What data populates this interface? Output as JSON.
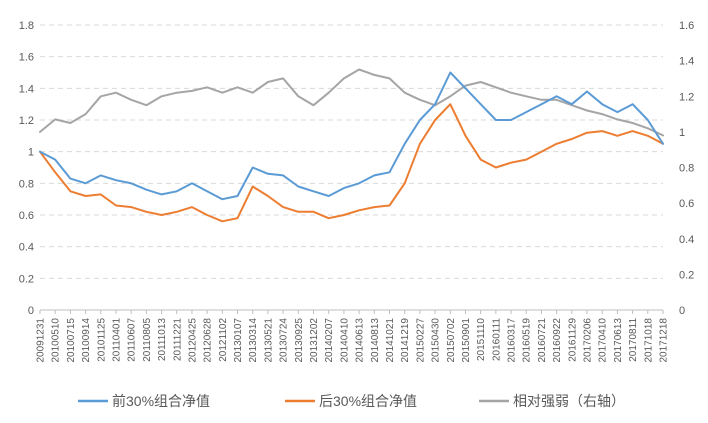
{
  "chart_data": {
    "type": "line",
    "title": "",
    "xlabel": "",
    "ylabel": "",
    "ylim": [
      0,
      1.8
    ],
    "y2lim": [
      0,
      1.6
    ],
    "yticks": [
      "0",
      "0.2",
      "0.4",
      "0.6",
      "0.8",
      "1",
      "1.2",
      "1.4",
      "1.6",
      "1.8"
    ],
    "y2ticks": [
      "0",
      "0.2",
      "0.4",
      "0.6",
      "0.8",
      "1",
      "1.2",
      "1.4",
      "1.6"
    ],
    "grid": true,
    "legend_position": "bottom",
    "categories": [
      "20091231",
      "20100510",
      "20100715",
      "20100914",
      "20101125",
      "20110401",
      "20110607",
      "20110805",
      "20111013",
      "20111221",
      "20120425",
      "20120628",
      "20121102",
      "20130107",
      "20130314",
      "20130521",
      "20130724",
      "20130925",
      "20131202",
      "20140207",
      "20140410",
      "20140613",
      "20140813",
      "20141021",
      "20141219",
      "20150227",
      "20150430",
      "20150702",
      "20150901",
      "20151110",
      "20160111",
      "20160317",
      "20160519",
      "20160721",
      "20160922",
      "20161129",
      "20170206",
      "20170410",
      "20170613",
      "20170811",
      "20171018",
      "20171218"
    ],
    "series": [
      {
        "name": "前30%组合净值",
        "axis": "left",
        "color": "#5B9BD5",
        "values": [
          1.0,
          0.95,
          0.83,
          0.8,
          0.85,
          0.82,
          0.8,
          0.76,
          0.73,
          0.75,
          0.8,
          0.75,
          0.7,
          0.72,
          0.9,
          0.86,
          0.85,
          0.78,
          0.75,
          0.72,
          0.77,
          0.8,
          0.85,
          0.87,
          1.05,
          1.2,
          1.3,
          1.5,
          1.4,
          1.3,
          1.2,
          1.2,
          1.25,
          1.3,
          1.35,
          1.3,
          1.38,
          1.3,
          1.25,
          1.3,
          1.2,
          1.05
        ]
      },
      {
        "name": "后30%组合净值",
        "axis": "left",
        "color": "#ED7D31",
        "values": [
          1.0,
          0.87,
          0.75,
          0.72,
          0.73,
          0.66,
          0.65,
          0.62,
          0.6,
          0.62,
          0.65,
          0.6,
          0.56,
          0.58,
          0.78,
          0.72,
          0.65,
          0.62,
          0.62,
          0.58,
          0.6,
          0.63,
          0.65,
          0.66,
          0.8,
          1.05,
          1.2,
          1.3,
          1.1,
          0.95,
          0.9,
          0.93,
          0.95,
          1.0,
          1.05,
          1.08,
          1.12,
          1.13,
          1.1,
          1.13,
          1.1,
          1.05
        ]
      },
      {
        "name": "相对强弱（右轴）",
        "axis": "right",
        "color": "#A5A5A5",
        "values": [
          1.0,
          1.07,
          1.05,
          1.1,
          1.2,
          1.22,
          1.18,
          1.15,
          1.2,
          1.22,
          1.23,
          1.25,
          1.22,
          1.25,
          1.22,
          1.28,
          1.3,
          1.2,
          1.15,
          1.22,
          1.3,
          1.35,
          1.32,
          1.3,
          1.22,
          1.18,
          1.15,
          1.2,
          1.26,
          1.28,
          1.25,
          1.22,
          1.2,
          1.18,
          1.18,
          1.15,
          1.12,
          1.1,
          1.07,
          1.05,
          1.02,
          0.98
        ]
      }
    ]
  }
}
